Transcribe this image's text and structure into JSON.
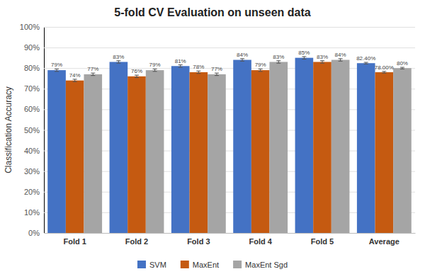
{
  "chart_data": {
    "type": "bar",
    "title": "5-fold CV Evaluation on unseen data",
    "ylabel": "Classification Accuracy",
    "categories": [
      "Fold 1",
      "Fold 2",
      "Fold 3",
      "Fold 4",
      "Fold 5",
      "Average"
    ],
    "series": [
      {
        "name": "SVM",
        "color": "#4472C4",
        "values": [
          0.79,
          0.83,
          0.81,
          0.84,
          0.85,
          0.824
        ],
        "value_labels": [
          "79%",
          "83%",
          "81%",
          "84%",
          "85%",
          "82.40%"
        ],
        "errors": [
          0.006,
          0.006,
          0.006,
          0.006,
          0.006,
          0.004
        ]
      },
      {
        "name": "MaxEnt",
        "color": "#C55A11",
        "values": [
          0.74,
          0.76,
          0.78,
          0.79,
          0.83,
          0.78
        ],
        "value_labels": [
          "74%",
          "76%",
          "78%",
          "79%",
          "83%",
          "78.00%"
        ],
        "errors": [
          0.006,
          0.006,
          0.006,
          0.006,
          0.006,
          0.004
        ]
      },
      {
        "name": "MaxEnt Sgd",
        "color": "#A5A5A5",
        "values": [
          0.77,
          0.79,
          0.77,
          0.83,
          0.84,
          0.8
        ],
        "value_labels": [
          "77%",
          "79%",
          "77%",
          "83%",
          "84%",
          "80%"
        ],
        "errors": [
          0.006,
          0.006,
          0.006,
          0.006,
          0.006,
          0.004
        ]
      }
    ],
    "ylim": [
      0,
      1.0
    ],
    "yticks": [
      {
        "value": 0.0,
        "label": "0%"
      },
      {
        "value": 0.1,
        "label": "10%"
      },
      {
        "value": 0.2,
        "label": "20%"
      },
      {
        "value": 0.3,
        "label": "30%"
      },
      {
        "value": 0.4,
        "label": "40%"
      },
      {
        "value": 0.5,
        "label": "50%"
      },
      {
        "value": 0.6,
        "label": "60%"
      },
      {
        "value": 0.7,
        "label": "70%"
      },
      {
        "value": 0.8,
        "label": "80%"
      },
      {
        "value": 0.9,
        "label": "90%"
      },
      {
        "value": 1.0,
        "label": "100%"
      }
    ],
    "grid": true,
    "legend": "bottom",
    "data_labels": true
  }
}
